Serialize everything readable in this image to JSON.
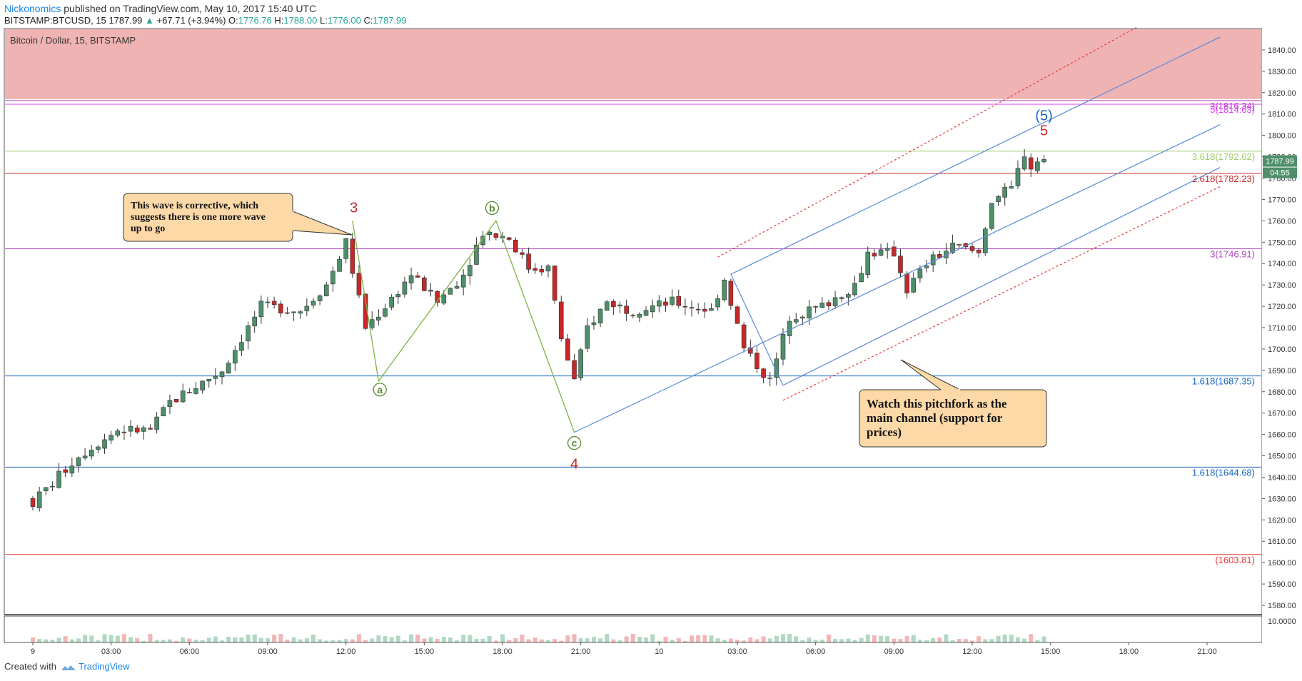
{
  "header": {
    "author": "Nickonomics",
    "published_text": "published on TradingView.com, May 10, 2017 15:40 UTC",
    "symbol": "BITSTAMP:BTCUSD, 15",
    "last": "1787.99",
    "change_arrow": "▲",
    "change": "+67.71 (+3.94%)",
    "open_label": "O:",
    "open": "1776.76",
    "high_label": "H:",
    "high": "1788.00",
    "low_label": "L:",
    "low": "1776.00",
    "close_label": "C:",
    "close": "1787.99"
  },
  "footer": {
    "created_with": "Created with",
    "brand": "TradingView"
  },
  "colors": {
    "up": "#4e8f6a",
    "down": "#c62828",
    "resistance_zone": "#efb3b3",
    "pitchfork": "#5b8bd9",
    "pitchfork_outer": "#e53935",
    "wave": "#7cb342"
  },
  "chart_data": {
    "type": "candlestick",
    "title": "Bitcoin / Dollar, 15, BITSTAMP",
    "ylim": [
      1576,
      1850
    ],
    "y_ticks": [
      "1580.00",
      "1590.00",
      "1600.00",
      "1610.00",
      "1620.00",
      "1630.00",
      "1640.00",
      "1650.00",
      "1660.00",
      "1670.00",
      "1680.00",
      "1690.00",
      "1700.00",
      "1710.00",
      "1720.00",
      "1730.00",
      "1740.00",
      "1750.00",
      "1760.00",
      "1770.00",
      "1780.00",
      "1790.00",
      "1800.00",
      "1810.00",
      "1820.00",
      "1830.00",
      "1840.00"
    ],
    "volume_scale_label": "10.0000",
    "x_ticks": [
      "9",
      "03:00",
      "06:00",
      "09:00",
      "12:00",
      "15:00",
      "18:00",
      "21:00",
      "10",
      "03:00",
      "06:00",
      "09:00",
      "12:00",
      "15:00",
      "18:00",
      "21:00"
    ],
    "x_ticks_time": [
      0,
      3,
      6,
      9,
      12,
      15,
      18,
      21,
      24,
      27,
      30,
      33,
      36,
      39,
      42,
      45
    ],
    "time_unit": "hours since May 9 00:00",
    "price_badge": {
      "value": "1787.99",
      "countdown": "04:55"
    },
    "resistance_zone": [
      1817,
      1850
    ],
    "fib_levels": [
      {
        "label": "3(1816.34)",
        "value": 1816.3,
        "color": "#ab47bc"
      },
      {
        "label": "5(1814.63)",
        "value": 1814.6,
        "color": "#e040fb"
      },
      {
        "label": "3.618(1792.62)",
        "value": 1792.6,
        "color": "#9ccc65"
      },
      {
        "label": "2.618(1782.23)",
        "value": 1782.2,
        "color": "#c62828"
      },
      {
        "label": "3(1746.91)",
        "value": 1746.9,
        "color": "#ab47bc"
      },
      {
        "label": "1.618(1687.35)",
        "value": 1687.4,
        "color": "#1565c0"
      },
      {
        "label": "1.618(1644.68)",
        "value": 1644.7,
        "color": "#1565c0"
      },
      {
        "label": "(1603.81)",
        "value": 1603.8,
        "color": "#e53935"
      }
    ],
    "wave_path": [
      [
        12.25,
        1760
      ],
      [
        13.25,
        1685
      ],
      [
        17.75,
        1760
      ],
      [
        20.75,
        1661
      ]
    ],
    "wave_labels": [
      {
        "text": "3",
        "t": 12.3,
        "p": 1766,
        "color": "#c62828",
        "circle": false
      },
      {
        "text": "a",
        "t": 13.3,
        "p": 1681,
        "color": "#558b2f",
        "circle": true
      },
      {
        "text": "b",
        "t": 17.6,
        "p": 1766,
        "color": "#558b2f",
        "circle": true
      },
      {
        "text": "c",
        "t": 20.75,
        "p": 1656,
        "color": "#558b2f",
        "circle": true
      },
      {
        "text": "4",
        "t": 20.75,
        "p": 1646,
        "color": "#c62828",
        "circle": false
      },
      {
        "text": "(5)",
        "t": 38.75,
        "p": 1809,
        "color": "#1e63c4",
        "circle": false
      },
      {
        "text": "5",
        "t": 38.75,
        "p": 1802,
        "color": "#c62828",
        "circle": false
      }
    ],
    "pitchfork": {
      "median": [
        [
          20.75,
          1661
        ],
        [
          45.5,
          1805
        ]
      ],
      "upper": [
        [
          26.75,
          1735
        ],
        [
          45.5,
          1846
        ]
      ],
      "lower": [
        [
          28.75,
          1683
        ],
        [
          45.5,
          1785
        ]
      ],
      "outer_upper": [
        [
          26.25,
          1743
        ],
        [
          45.5,
          1872
        ]
      ],
      "outer_lower": [
        [
          28.75,
          1676
        ],
        [
          45.5,
          1776
        ]
      ]
    },
    "annotations": [
      {
        "text": "This wave is corrective, which suggests there is one more wave up to go",
        "lines": [
          "This wave is corrective, which",
          "suggests there is one more wave",
          "up to go"
        ]
      },
      {
        "text": "Watch this pitchfork as the main channel (support for prices)",
        "lines": [
          "Watch this pitchfork as the",
          "main channel (support for",
          "prices)"
        ]
      }
    ],
    "anchors": [
      [
        0,
        1625
      ],
      [
        2,
        1650
      ],
      [
        3.5,
        1662
      ],
      [
        4.75,
        1662
      ],
      [
        5.5,
        1675
      ],
      [
        7.5,
        1690
      ],
      [
        9,
        1720
      ],
      [
        10.5,
        1718
      ],
      [
        11.5,
        1730
      ],
      [
        12.25,
        1750
      ],
      [
        13,
        1710
      ],
      [
        13.75,
        1720
      ],
      [
        14.75,
        1735
      ],
      [
        15.75,
        1722
      ],
      [
        16.75,
        1735
      ],
      [
        17.5,
        1755
      ],
      [
        18.5,
        1752
      ],
      [
        19.25,
        1738
      ],
      [
        20,
        1738
      ],
      [
        20.5,
        1705
      ],
      [
        21,
        1685
      ],
      [
        21.5,
        1710
      ],
      [
        22.25,
        1722
      ],
      [
        23.25,
        1718
      ],
      [
        24.75,
        1722
      ],
      [
        26.25,
        1718
      ],
      [
        26.75,
        1733
      ],
      [
        27.5,
        1700
      ],
      [
        28.5,
        1685
      ],
      [
        29.25,
        1715
      ],
      [
        30.5,
        1720
      ],
      [
        31.75,
        1730
      ],
      [
        32.25,
        1745
      ],
      [
        33.25,
        1745
      ],
      [
        33.75,
        1728
      ],
      [
        34.5,
        1740
      ],
      [
        35.5,
        1748
      ],
      [
        36.5,
        1745
      ],
      [
        37,
        1770
      ],
      [
        37.75,
        1775
      ],
      [
        38.25,
        1792
      ],
      [
        38.5,
        1785
      ],
      [
        38.75,
        1788
      ]
    ],
    "candle_count": 156,
    "seed": 7
  }
}
